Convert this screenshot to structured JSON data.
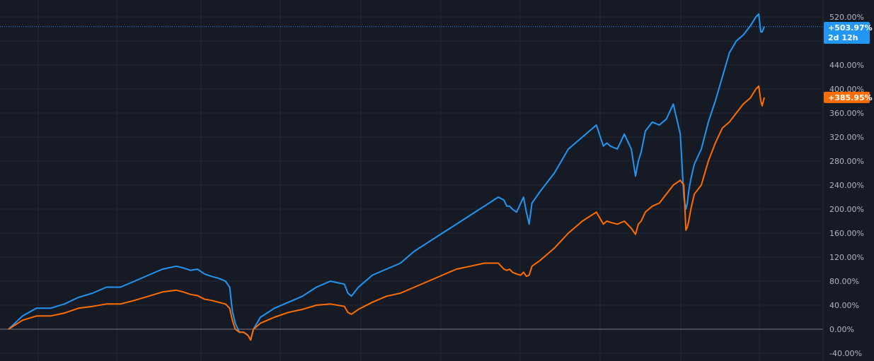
{
  "chart_data": {
    "type": "line",
    "x": [
      0,
      20,
      40,
      60,
      80,
      100,
      120,
      140,
      160,
      180,
      200,
      220,
      240,
      250,
      260,
      270,
      280,
      290,
      300,
      310,
      316,
      320,
      324,
      330,
      336,
      342,
      346,
      350,
      360,
      380,
      400,
      420,
      440,
      460,
      480,
      485,
      490,
      500,
      520,
      540,
      560,
      580,
      600,
      620,
      640,
      660,
      680,
      700,
      708,
      712,
      716,
      720,
      726,
      732,
      736,
      740,
      744,
      748,
      760,
      780,
      800,
      820,
      840,
      850,
      855,
      860,
      870,
      880,
      890,
      896,
      900,
      904,
      910,
      920,
      930,
      940,
      950,
      960,
      965,
      968,
      970,
      972,
      975,
      980,
      990,
      1000,
      1010,
      1020,
      1030,
      1040,
      1050,
      1060,
      1068,
      1072,
      1075,
      1077,
      1080
    ],
    "ylim": [
      -40,
      540
    ],
    "y_ticks": [
      -40,
      0,
      40,
      80,
      120,
      160,
      200,
      240,
      280,
      320,
      360,
      400,
      440,
      480,
      520
    ],
    "y_tick_suffix": "%",
    "grid": true,
    "series": [
      {
        "color": "#2196f3",
        "values": [
          0,
          22,
          35,
          35,
          42,
          53,
          60,
          70,
          70,
          80,
          90,
          100,
          105,
          102,
          98,
          100,
          92,
          88,
          85,
          80,
          70,
          30,
          10,
          -5,
          -5,
          -10,
          -18,
          0,
          20,
          35,
          45,
          55,
          70,
          80,
          75,
          60,
          55,
          70,
          90,
          100,
          110,
          130,
          145,
          160,
          175,
          190,
          205,
          220,
          215,
          205,
          205,
          200,
          195,
          210,
          220,
          195,
          175,
          210,
          230,
          260,
          300,
          320,
          340,
          305,
          310,
          305,
          300,
          325,
          300,
          255,
          280,
          295,
          330,
          345,
          340,
          350,
          375,
          325,
          220,
          200,
          210,
          230,
          250,
          275,
          300,
          345,
          380,
          420,
          460,
          480,
          490,
          505,
          520,
          525,
          495,
          495,
          504
        ],
        "end_label": "+503.97%"
      },
      {
        "color": "#ff6d00",
        "values": [
          0,
          15,
          22,
          22,
          27,
          35,
          38,
          42,
          42,
          48,
          55,
          62,
          65,
          62,
          58,
          56,
          50,
          48,
          45,
          42,
          35,
          15,
          0,
          -5,
          -5,
          -10,
          -18,
          0,
          10,
          20,
          28,
          33,
          40,
          42,
          38,
          28,
          25,
          33,
          45,
          55,
          60,
          70,
          80,
          90,
          100,
          105,
          110,
          110,
          100,
          98,
          100,
          95,
          92,
          90,
          95,
          88,
          90,
          105,
          115,
          135,
          160,
          180,
          195,
          175,
          180,
          178,
          175,
          180,
          168,
          158,
          175,
          180,
          195,
          205,
          210,
          225,
          240,
          248,
          240,
          165,
          170,
          180,
          200,
          225,
          240,
          280,
          310,
          335,
          345,
          360,
          375,
          385,
          400,
          405,
          380,
          372,
          386
        ],
        "end_label": "+385.95%"
      }
    ],
    "badges": {
      "blue_value": "+503.97%",
      "blue_timer": "2d 12h",
      "orange_value": "+385.95%"
    }
  }
}
